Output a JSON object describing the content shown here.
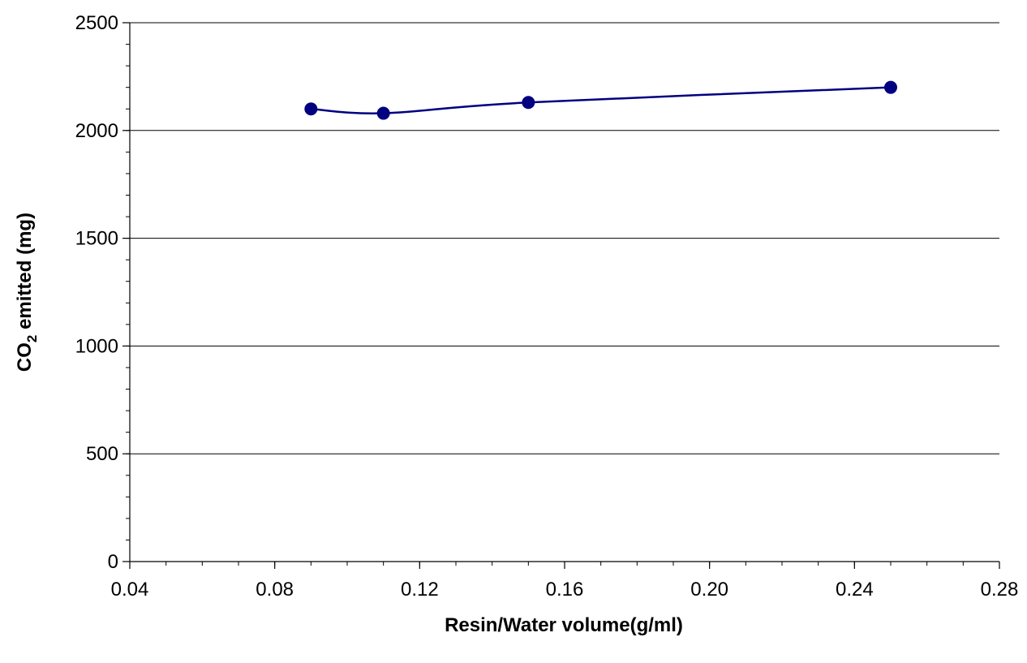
{
  "chart_data": {
    "type": "line",
    "title": "",
    "xlabel": "Resin/Water volume(g/ml)",
    "ylabel": {
      "prefix": "CO",
      "subscript": "2",
      "suffix": " emitted (mg)"
    },
    "xlim": [
      0.04,
      0.28
    ],
    "ylim": [
      0,
      2500
    ],
    "x_ticks": [
      0.04,
      0.08,
      0.12,
      0.16,
      0.2,
      0.24,
      0.28
    ],
    "x_tick_labels": [
      "0.04",
      "0.08",
      "0.12",
      "0.16",
      "0.20",
      "0.24",
      "0.28"
    ],
    "x_minor_step": 0.01,
    "y_ticks": [
      0,
      500,
      1000,
      1500,
      2000,
      2500
    ],
    "y_tick_labels": [
      "0",
      "500",
      "1000",
      "1500",
      "2000",
      "2500"
    ],
    "y_minor_step": 100,
    "grid": "horizontal-major",
    "legend": "none",
    "series": [
      {
        "x": [
          0.09,
          0.11,
          0.15,
          0.25
        ],
        "y": [
          2100,
          2080,
          2130,
          2200
        ],
        "color": "#000080",
        "line_style": "smoothed",
        "marker": "circle"
      }
    ]
  }
}
